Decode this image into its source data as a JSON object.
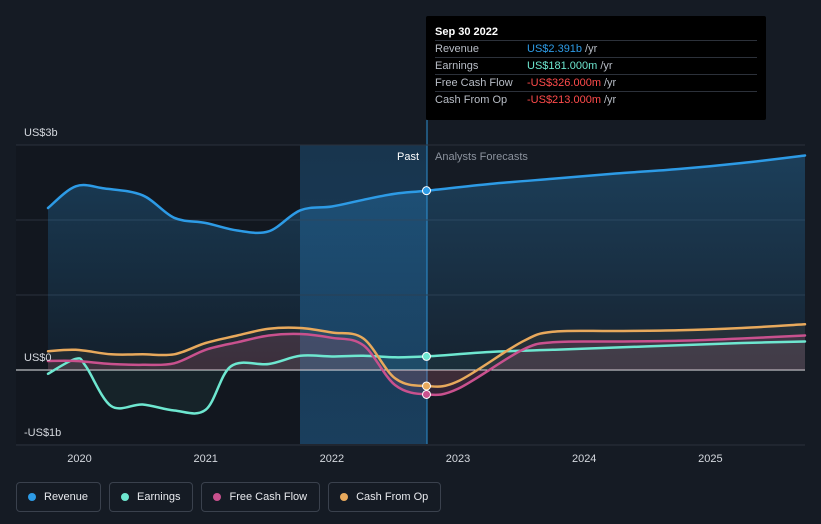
{
  "tooltip": {
    "date": "Sep 30 2022",
    "rows": [
      {
        "label": "Revenue",
        "value": "US$2.391b",
        "unit": "/yr",
        "color": "#2d9be6"
      },
      {
        "label": "Earnings",
        "value": "US$181.000m",
        "unit": "/yr",
        "color": "#6ee7d0"
      },
      {
        "label": "Free Cash Flow",
        "value": "-US$326.000m",
        "unit": "/yr",
        "color": "#ff4b4b"
      },
      {
        "label": "Cash From Op",
        "value": "-US$213.000m",
        "unit": "/yr",
        "color": "#ff4b4b"
      }
    ]
  },
  "legend": [
    {
      "label": "Revenue",
      "color": "#2d9be6",
      "icon": "revenue-dot-icon"
    },
    {
      "label": "Earnings",
      "color": "#6ee7d0",
      "icon": "earnings-dot-icon"
    },
    {
      "label": "Free Cash Flow",
      "color": "#c9518e",
      "icon": "free-cash-flow-dot-icon"
    },
    {
      "label": "Cash From Op",
      "color": "#e8a95c",
      "icon": "cash-from-op-dot-icon"
    }
  ],
  "chart_data": {
    "type": "line",
    "y_tick_labels": [
      "US$3b",
      "US$0",
      "-US$1b"
    ],
    "ylim": [
      -1000,
      3000
    ],
    "x_tick_labels": [
      "2020",
      "2021",
      "2022",
      "2023",
      "2024",
      "2025"
    ],
    "xlim": [
      2019.75,
      2025.75
    ],
    "past_label": "Past",
    "forecast_label": "Analysts Forecasts",
    "past_end": 2022.75,
    "grid": true,
    "legend_position": "bottom",
    "series": [
      {
        "name": "Revenue",
        "color": "#2d9be6",
        "points": [
          [
            2019.75,
            2160
          ],
          [
            2019.97,
            2450
          ],
          [
            2020.2,
            2420
          ],
          [
            2020.5,
            2330
          ],
          [
            2020.75,
            2030
          ],
          [
            2021.0,
            1960
          ],
          [
            2021.25,
            1860
          ],
          [
            2021.5,
            1850
          ],
          [
            2021.75,
            2130
          ],
          [
            2022.0,
            2180
          ],
          [
            2022.25,
            2270
          ],
          [
            2022.5,
            2350
          ],
          [
            2022.75,
            2391
          ],
          [
            2023.25,
            2480
          ],
          [
            2023.75,
            2550
          ],
          [
            2024.25,
            2620
          ],
          [
            2024.75,
            2680
          ],
          [
            2025.25,
            2760
          ],
          [
            2025.75,
            2860
          ]
        ]
      },
      {
        "name": "Earnings",
        "color": "#6ee7d0",
        "points": [
          [
            2019.75,
            -50
          ],
          [
            2019.97,
            150
          ],
          [
            2020.05,
            50
          ],
          [
            2020.25,
            -480
          ],
          [
            2020.5,
            -460
          ],
          [
            2020.75,
            -540
          ],
          [
            2021.0,
            -530
          ],
          [
            2021.2,
            50
          ],
          [
            2021.5,
            80
          ],
          [
            2021.75,
            190
          ],
          [
            2022.0,
            180
          ],
          [
            2022.25,
            190
          ],
          [
            2022.5,
            170
          ],
          [
            2022.75,
            181
          ],
          [
            2023.25,
            240
          ],
          [
            2023.75,
            270
          ],
          [
            2024.25,
            300
          ],
          [
            2024.75,
            330
          ],
          [
            2025.25,
            360
          ],
          [
            2025.75,
            380
          ]
        ]
      },
      {
        "name": "Free Cash Flow",
        "color": "#c9518e",
        "points": [
          [
            2019.75,
            120
          ],
          [
            2019.97,
            120
          ],
          [
            2020.25,
            80
          ],
          [
            2020.5,
            70
          ],
          [
            2020.75,
            90
          ],
          [
            2021.0,
            270
          ],
          [
            2021.25,
            370
          ],
          [
            2021.5,
            460
          ],
          [
            2021.75,
            480
          ],
          [
            2022.0,
            430
          ],
          [
            2022.25,
            330
          ],
          [
            2022.5,
            -200
          ],
          [
            2022.75,
            -326
          ],
          [
            2023.0,
            -250
          ],
          [
            2023.5,
            260
          ],
          [
            2023.75,
            370
          ],
          [
            2024.25,
            380
          ],
          [
            2024.75,
            390
          ],
          [
            2025.25,
            420
          ],
          [
            2025.75,
            460
          ]
        ]
      },
      {
        "name": "Cash From Op",
        "color": "#e8a95c",
        "points": [
          [
            2019.75,
            250
          ],
          [
            2019.97,
            270
          ],
          [
            2020.25,
            210
          ],
          [
            2020.5,
            210
          ],
          [
            2020.75,
            210
          ],
          [
            2021.0,
            360
          ],
          [
            2021.25,
            460
          ],
          [
            2021.5,
            550
          ],
          [
            2021.75,
            560
          ],
          [
            2022.0,
            500
          ],
          [
            2022.25,
            420
          ],
          [
            2022.5,
            -110
          ],
          [
            2022.75,
            -213
          ],
          [
            2023.0,
            -150
          ],
          [
            2023.5,
            370
          ],
          [
            2023.75,
            510
          ],
          [
            2024.25,
            520
          ],
          [
            2024.75,
            530
          ],
          [
            2025.25,
            560
          ],
          [
            2025.75,
            610
          ]
        ]
      }
    ]
  }
}
